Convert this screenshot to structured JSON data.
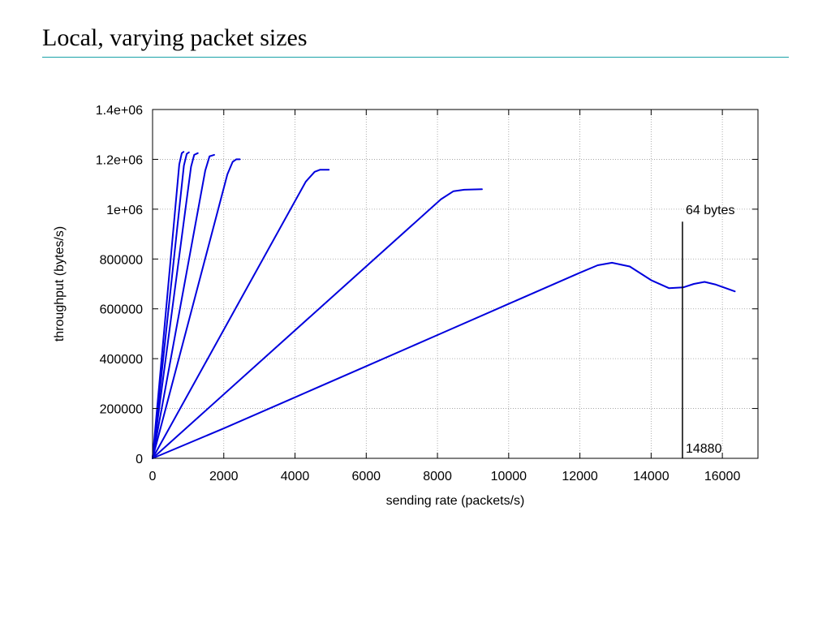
{
  "page": {
    "title": "Local, varying packet sizes"
  },
  "chart_data": {
    "type": "line",
    "title": "",
    "xlabel": "sending rate (packets/s)",
    "ylabel": "throughput (bytes/s)",
    "xlim": [
      0,
      17000
    ],
    "ylim": [
      0,
      1400000
    ],
    "x_ticks": [
      {
        "value": 0,
        "label": "0"
      },
      {
        "value": 2000,
        "label": "2000"
      },
      {
        "value": 4000,
        "label": "4000"
      },
      {
        "value": 6000,
        "label": "6000"
      },
      {
        "value": 8000,
        "label": "8000"
      },
      {
        "value": 10000,
        "label": "10000"
      },
      {
        "value": 12000,
        "label": "12000"
      },
      {
        "value": 14000,
        "label": "14000"
      },
      {
        "value": 16000,
        "label": "16000"
      }
    ],
    "y_ticks": [
      {
        "value": 0,
        "label": "0"
      },
      {
        "value": 200000,
        "label": "200000"
      },
      {
        "value": 400000,
        "label": "400000"
      },
      {
        "value": 600000,
        "label": "600000"
      },
      {
        "value": 800000,
        "label": "800000"
      },
      {
        "value": 1000000,
        "label": "1e+06"
      },
      {
        "value": 1200000,
        "label": "1.2e+06"
      },
      {
        "value": 1400000,
        "label": "1.4e+06"
      }
    ],
    "grid": true,
    "series_color": "#0000dd",
    "series": [
      {
        "name": "",
        "x": [
          0,
          750,
          820,
          870
        ],
        "y": [
          0,
          1180000,
          1225000,
          1230000
        ]
      },
      {
        "name": "",
        "x": [
          0,
          880,
          960,
          1020
        ],
        "y": [
          0,
          1175000,
          1222000,
          1228000
        ]
      },
      {
        "name": "",
        "x": [
          0,
          1080,
          1170,
          1270
        ],
        "y": [
          0,
          1170000,
          1218000,
          1225000
        ]
      },
      {
        "name": "",
        "x": [
          0,
          1480,
          1600,
          1730
        ],
        "y": [
          0,
          1155000,
          1212000,
          1218000
        ]
      },
      {
        "name": "",
        "x": [
          0,
          2100,
          2250,
          2350,
          2450
        ],
        "y": [
          0,
          1140000,
          1190000,
          1200000,
          1200000
        ]
      },
      {
        "name": "",
        "x": [
          0,
          4300,
          4550,
          4700,
          4950
        ],
        "y": [
          0,
          1110000,
          1150000,
          1158000,
          1158000
        ]
      },
      {
        "name": "",
        "x": [
          0,
          8100,
          8450,
          8750,
          9250
        ],
        "y": [
          0,
          1040000,
          1072000,
          1078000,
          1080000
        ]
      },
      {
        "name": "",
        "x": [
          0,
          2000,
          4000,
          6000,
          8000,
          10000,
          12000,
          12500,
          12900,
          13400,
          14000,
          14500,
          14900,
          15200,
          15500,
          15800,
          16350
        ],
        "y": [
          0,
          120000,
          245000,
          370000,
          495000,
          620000,
          745000,
          775000,
          785000,
          770000,
          715000,
          683000,
          686000,
          700000,
          708000,
          698000,
          670000
        ]
      }
    ],
    "annotations": [
      {
        "text": "64 bytes",
        "x": 14880,
        "y": 1000000
      },
      {
        "text": "14880",
        "x": 14880,
        "y": 0
      }
    ],
    "vertical_marker": {
      "x": 14880,
      "y_top": 950000
    }
  }
}
